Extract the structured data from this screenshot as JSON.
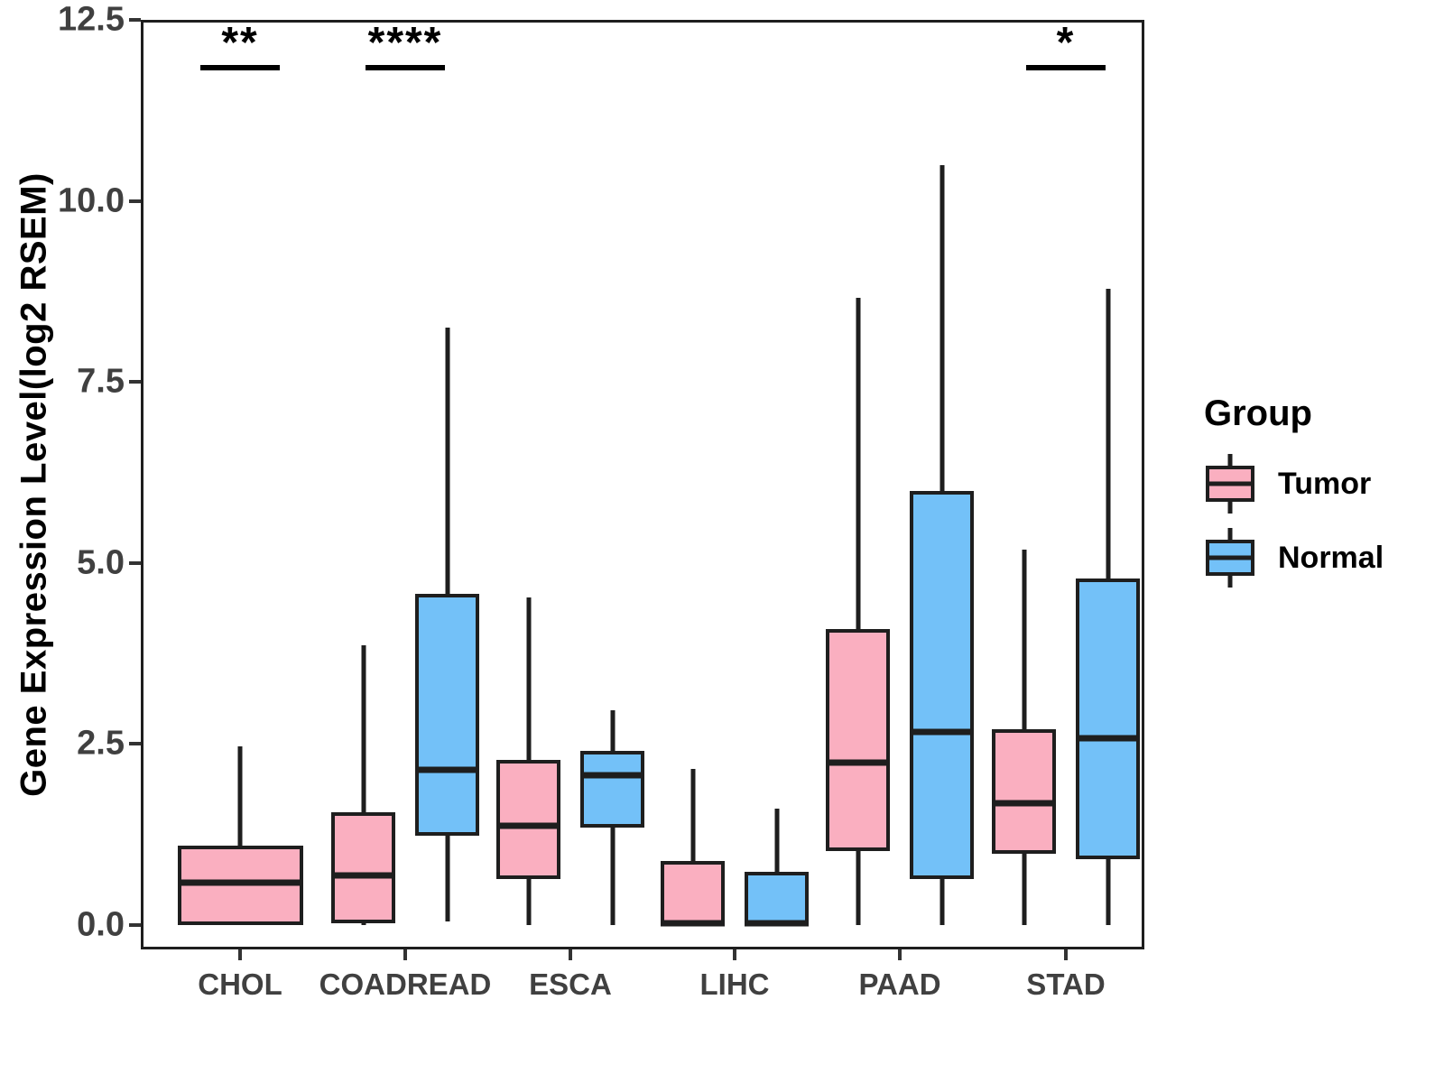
{
  "colors": {
    "tumor_fill": "#FAAFC0",
    "normal_fill": "#73C1F8",
    "stroke": "#1E1E1E",
    "axis_text": "#404040",
    "annotation": "#000000"
  },
  "chart_data": {
    "type": "boxplot",
    "title": "",
    "ylabel": "Gene Expression Level(log2 RSEM)",
    "xlabel": "",
    "ylim": [
      -0.35,
      12.5
    ],
    "yticks": [
      0,
      2.5,
      5,
      7.5,
      10,
      12.5
    ],
    "ytick_labels": [
      "0.0",
      "2.5",
      "5.0",
      "7.5",
      "10.0",
      "12.5"
    ],
    "categories": [
      "CHOL",
      "COADREAD",
      "ESCA",
      "LIHC",
      "PAAD",
      "STAD"
    ],
    "grid": false,
    "legend": {
      "title": "Group",
      "position": "right"
    },
    "series": [
      {
        "name": "Tumor",
        "color": "#FAAFC0",
        "boxes": [
          {
            "whisker_low": 0,
            "q1": 0,
            "median": 0.58,
            "q3": 1.1,
            "whisker_high": 2.47
          },
          {
            "whisker_low": 0,
            "q1": 0.03,
            "median": 0.68,
            "q3": 1.56,
            "whisker_high": 3.86
          },
          {
            "whisker_low": 0,
            "q1": 0.64,
            "median": 1.37,
            "q3": 2.28,
            "whisker_high": 4.52
          },
          {
            "whisker_low": 0,
            "q1": 0,
            "median": 0.03,
            "q3": 0.88,
            "whisker_high": 2.16
          },
          {
            "whisker_low": 0,
            "q1": 1.02,
            "median": 2.24,
            "q3": 4.09,
            "whisker_high": 8.66
          },
          {
            "whisker_low": 0,
            "q1": 0.98,
            "median": 1.68,
            "q3": 2.71,
            "whisker_high": 5.19
          }
        ]
      },
      {
        "name": "Normal",
        "color": "#73C1F8",
        "boxes": [
          null,
          {
            "whisker_low": 0.05,
            "q1": 1.23,
            "median": 2.14,
            "q3": 4.57,
            "whisker_high": 8.25
          },
          {
            "whisker_low": 0,
            "q1": 1.35,
            "median": 2.07,
            "q3": 2.41,
            "whisker_high": 2.97
          },
          {
            "whisker_low": 0,
            "q1": 0,
            "median": 0.03,
            "q3": 0.74,
            "whisker_high": 1.61
          },
          {
            "whisker_low": 0,
            "q1": 0.64,
            "median": 2.67,
            "q3": 6.0,
            "whisker_high": 10.49
          },
          {
            "whisker_low": 0,
            "q1": 0.91,
            "median": 2.58,
            "q3": 4.79,
            "whisker_high": 8.78
          }
        ]
      }
    ],
    "significance": [
      {
        "category": "CHOL",
        "label": "**"
      },
      {
        "category": "COADREAD",
        "label": "****"
      },
      {
        "category": "STAD",
        "label": "*"
      }
    ]
  }
}
